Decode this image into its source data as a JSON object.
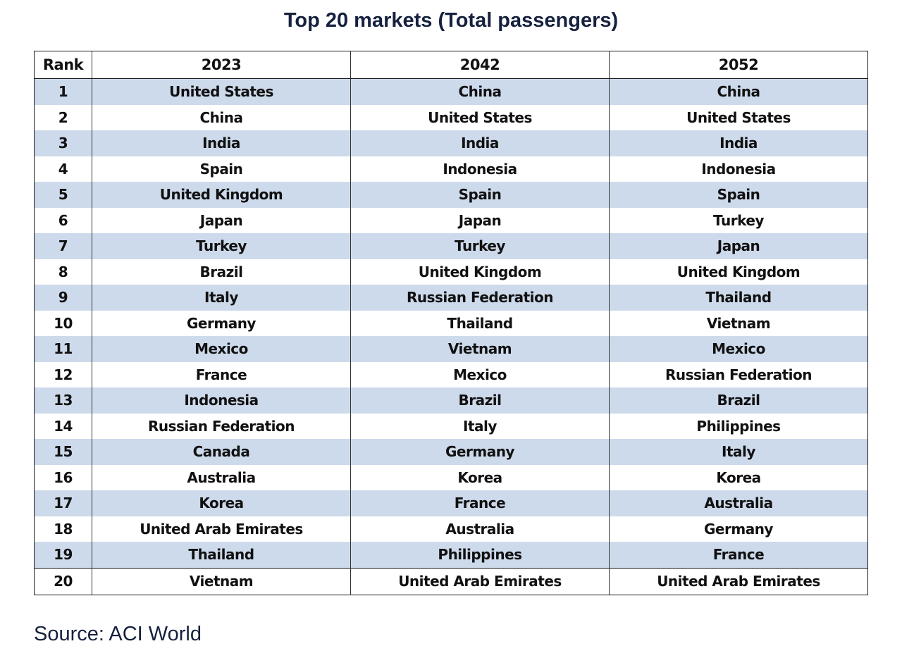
{
  "title": "Top 20 markets (Total passengers)",
  "table": {
    "headers": [
      "Rank",
      "2023",
      "2042",
      "2052"
    ],
    "rows": [
      [
        "1",
        "United States",
        "China",
        "China"
      ],
      [
        "2",
        "China",
        "United States",
        "United States"
      ],
      [
        "3",
        "India",
        "India",
        "India"
      ],
      [
        "4",
        "Spain",
        "Indonesia",
        "Indonesia"
      ],
      [
        "5",
        "United Kingdom",
        "Spain",
        "Spain"
      ],
      [
        "6",
        "Japan",
        "Japan",
        "Turkey"
      ],
      [
        "7",
        "Turkey",
        "Turkey",
        "Japan"
      ],
      [
        "8",
        "Brazil",
        "United Kingdom",
        "United Kingdom"
      ],
      [
        "9",
        "Italy",
        "Russian Federation",
        "Thailand"
      ],
      [
        "10",
        "Germany",
        "Thailand",
        "Vietnam"
      ],
      [
        "11",
        "Mexico",
        "Vietnam",
        "Mexico"
      ],
      [
        "12",
        "France",
        "Mexico",
        "Russian Federation"
      ],
      [
        "13",
        "Indonesia",
        "Brazil",
        "Brazil"
      ],
      [
        "14",
        "Russian Federation",
        "Italy",
        "Philippines"
      ],
      [
        "15",
        "Canada",
        "Germany",
        "Italy"
      ],
      [
        "16",
        "Australia",
        "Korea",
        "Korea"
      ],
      [
        "17",
        "Korea",
        "France",
        "Australia"
      ],
      [
        "18",
        "United Arab Emirates",
        "Australia",
        "Germany"
      ],
      [
        "19",
        "Thailand",
        "Philippines",
        "France"
      ],
      [
        "20",
        "Vietnam",
        "United Arab Emirates",
        "United Arab Emirates"
      ]
    ]
  },
  "source": "Source: ACI World",
  "colors": {
    "row_shade": "#cddaeb",
    "title_text": "#16213e",
    "border": "#1a1a1a"
  }
}
